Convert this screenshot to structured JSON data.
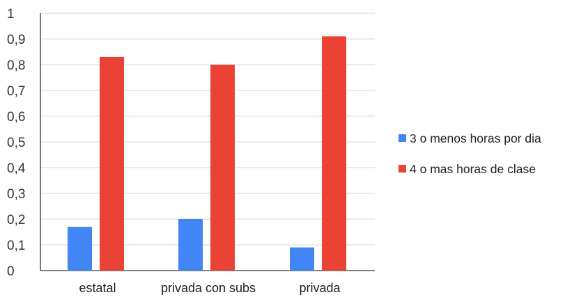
{
  "chart_data": {
    "type": "bar",
    "title": "",
    "xlabel": "",
    "ylabel": "",
    "categories": [
      "estatal",
      "privada con subs",
      "privada"
    ],
    "series": [
      {
        "name": "3 o menos horas por dia",
        "values": [
          0.17,
          0.2,
          0.09
        ],
        "color": "#4285f4"
      },
      {
        "name": "4 o mas horas de clase",
        "values": [
          0.83,
          0.8,
          0.91
        ],
        "color": "#ea4335"
      }
    ],
    "ylim": [
      0,
      1
    ],
    "yticks": [
      "0",
      "0,1",
      "0,2",
      "0,3",
      "0,4",
      "0,5",
      "0,6",
      "0,7",
      "0,8",
      "0,9",
      "1"
    ],
    "grid": true,
    "legend_position": "right"
  }
}
